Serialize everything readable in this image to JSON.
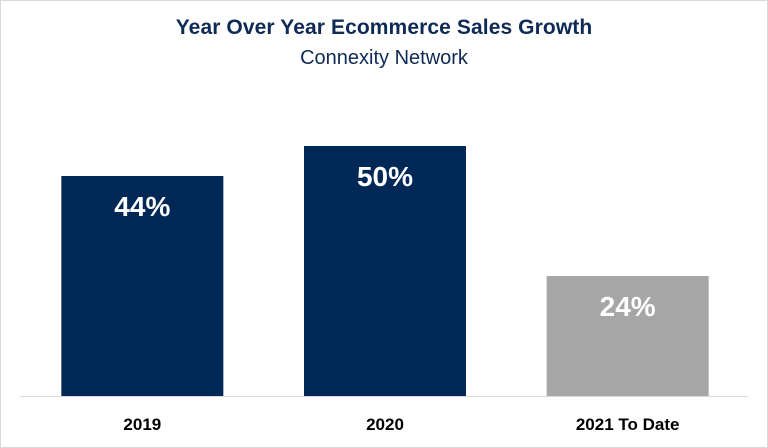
{
  "chart_data": {
    "type": "bar",
    "title": "Year Over Year Ecommerce Sales Growth",
    "subtitle": "Connexity Network",
    "categories": [
      "2019",
      "2020",
      "2021 To Date"
    ],
    "values": [
      44,
      50,
      24
    ],
    "data_labels": [
      "44%",
      "50%",
      "24%"
    ],
    "colors": [
      "#002856",
      "#002856",
      "#a6a6a6"
    ],
    "data_label_color": "#ffffff",
    "tick_label_color": "#000000",
    "title_color": "#0f2a55",
    "ylim": [
      0,
      50
    ],
    "grid": false,
    "legend": "none"
  }
}
